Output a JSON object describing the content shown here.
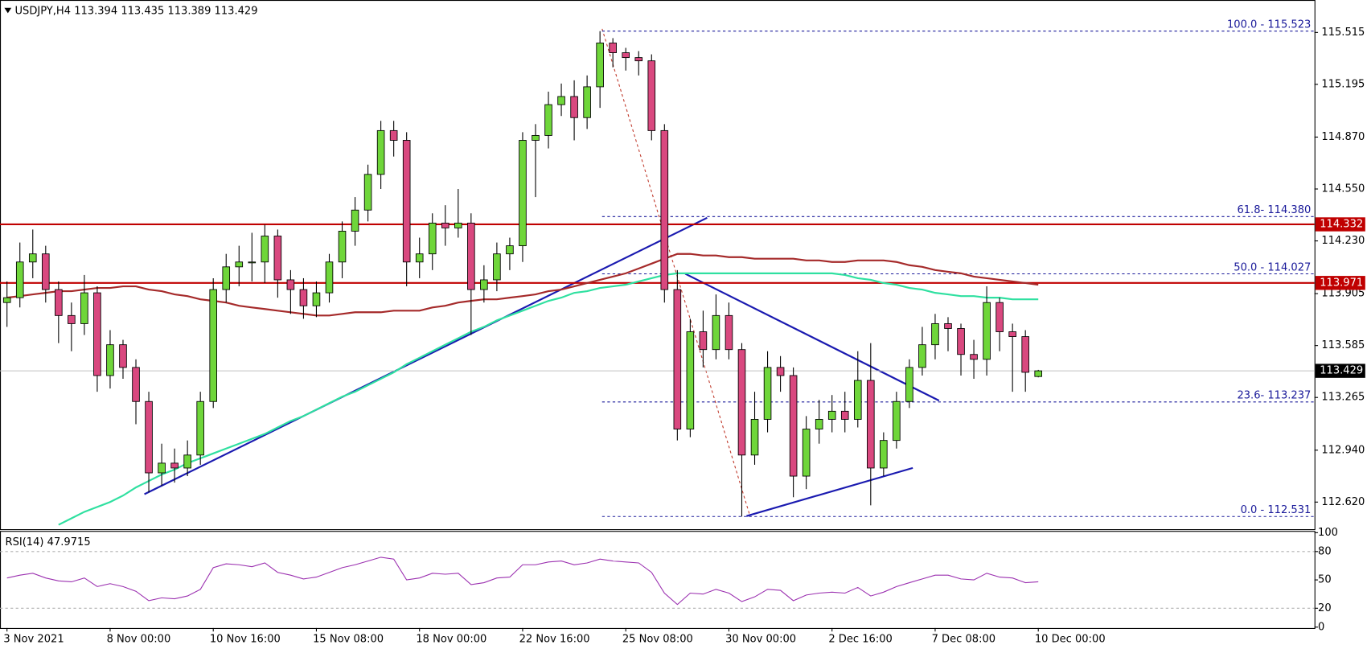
{
  "chart_data": {
    "type": "candlestick",
    "title": "USDJPY,H4  113.394 113.435 113.389 113.429",
    "categories": [
      "3 Nov 2021",
      null,
      null,
      null,
      null,
      null,
      null,
      null,
      "8 Nov 00:00",
      null,
      null,
      null,
      null,
      null,
      null,
      null,
      "10 Nov 16:00",
      null,
      null,
      null,
      null,
      null,
      null,
      null,
      "15 Nov 08:00",
      null,
      null,
      null,
      null,
      null,
      null,
      null,
      "18 Nov 00:00",
      null,
      null,
      null,
      null,
      null,
      null,
      null,
      "22 Nov 16:00",
      null,
      null,
      null,
      null,
      null,
      null,
      null,
      "25 Nov 08:00",
      null,
      null,
      null,
      null,
      null,
      null,
      null,
      "30 Nov 00:00",
      null,
      null,
      null,
      null,
      null,
      null,
      null,
      "2 Dec 16:00",
      null,
      null,
      null,
      null,
      null,
      null,
      null,
      "7 Dec 08:00",
      null,
      null,
      null,
      null,
      null,
      null,
      null,
      "10 Dec 00:00"
    ],
    "open": [
      113.85,
      113.88,
      114.1,
      114.15,
      113.93,
      113.77,
      113.72,
      113.91,
      113.4,
      113.59,
      113.45,
      113.24,
      112.8,
      112.86,
      112.83,
      112.91,
      113.24,
      113.93,
      114.07,
      114.1,
      114.1,
      114.26,
      113.99,
      113.93,
      113.83,
      113.91,
      114.1,
      114.29,
      114.42,
      114.64,
      114.91,
      114.85,
      114.1,
      114.15,
      114.34,
      114.31,
      114.34,
      113.93,
      113.99,
      114.15,
      114.2,
      114.85,
      114.88,
      115.07,
      115.12,
      114.99,
      115.18,
      115.45,
      115.39,
      115.36,
      115.34,
      114.91,
      113.93,
      113.07,
      113.67,
      113.56,
      113.77,
      113.56,
      112.91,
      113.13,
      113.45,
      113.4,
      112.78,
      113.07,
      113.13,
      113.18,
      113.13,
      113.37,
      112.83,
      113.0,
      113.24,
      113.45,
      113.59,
      113.72,
      113.69,
      113.53,
      113.5,
      113.85,
      113.67,
      113.64,
      113.394
    ],
    "high": [
      113.98,
      114.22,
      114.3,
      114.2,
      113.98,
      113.85,
      114.02,
      113.95,
      113.68,
      113.62,
      113.5,
      113.3,
      112.98,
      112.95,
      113.0,
      113.3,
      114.0,
      114.15,
      114.2,
      114.28,
      114.33,
      114.3,
      114.05,
      114.0,
      113.98,
      114.15,
      114.35,
      114.5,
      114.7,
      114.97,
      114.97,
      114.9,
      114.25,
      114.4,
      114.45,
      114.55,
      114.4,
      114.08,
      114.22,
      114.25,
      114.9,
      114.95,
      115.15,
      115.2,
      115.22,
      115.25,
      115.523,
      115.48,
      115.42,
      115.4,
      115.38,
      114.95,
      114.05,
      113.75,
      113.8,
      113.9,
      113.85,
      113.6,
      113.3,
      113.55,
      113.52,
      113.45,
      113.15,
      113.25,
      113.28,
      113.3,
      113.55,
      113.6,
      113.05,
      113.3,
      113.5,
      113.7,
      113.78,
      113.76,
      113.72,
      113.62,
      113.95,
      113.88,
      113.72,
      113.68,
      113.435
    ],
    "low": [
      113.7,
      113.82,
      114.0,
      113.85,
      113.6,
      113.55,
      113.65,
      113.3,
      113.32,
      113.38,
      113.1,
      112.68,
      112.72,
      112.74,
      112.78,
      112.85,
      113.2,
      113.85,
      113.95,
      113.98,
      113.97,
      113.88,
      113.78,
      113.75,
      113.76,
      113.85,
      114.0,
      114.2,
      114.35,
      114.55,
      114.75,
      113.95,
      114.0,
      114.05,
      114.2,
      114.25,
      113.65,
      113.85,
      113.92,
      114.05,
      114.1,
      114.5,
      114.8,
      115.0,
      114.85,
      114.92,
      115.05,
      115.3,
      115.28,
      115.25,
      114.85,
      113.85,
      113.0,
      113.02,
      113.45,
      113.5,
      113.5,
      112.531,
      112.85,
      113.05,
      113.3,
      112.65,
      112.7,
      112.98,
      113.05,
      113.05,
      113.08,
      112.6,
      112.78,
      112.95,
      113.2,
      113.4,
      113.5,
      113.55,
      113.4,
      113.38,
      113.4,
      113.55,
      113.3,
      113.3,
      113.389
    ],
    "close": [
      113.88,
      114.1,
      114.15,
      113.93,
      113.77,
      113.72,
      113.91,
      113.4,
      113.59,
      113.45,
      113.24,
      112.8,
      112.86,
      112.83,
      112.91,
      113.24,
      113.93,
      114.07,
      114.1,
      114.1,
      114.26,
      113.99,
      113.93,
      113.83,
      113.91,
      114.1,
      114.29,
      114.42,
      114.64,
      114.91,
      114.85,
      114.1,
      114.15,
      114.34,
      114.31,
      114.34,
      113.93,
      113.99,
      114.15,
      114.2,
      114.85,
      114.88,
      115.07,
      115.12,
      114.99,
      115.18,
      115.45,
      115.39,
      115.36,
      115.34,
      114.91,
      113.93,
      113.07,
      113.67,
      113.56,
      113.77,
      113.56,
      112.91,
      113.13,
      113.45,
      113.4,
      112.78,
      113.07,
      113.13,
      113.18,
      113.13,
      113.37,
      112.83,
      113.0,
      113.24,
      113.45,
      113.59,
      113.72,
      113.69,
      113.53,
      113.5,
      113.85,
      113.67,
      113.64,
      113.42,
      113.429
    ],
    "up_color": "#6fd63a",
    "down_color": "#d9487f",
    "lines": [
      {
        "color": "#2fe0a0",
        "values": [
          null,
          null,
          null,
          null,
          112.48,
          112.52,
          112.56,
          112.59,
          112.62,
          112.66,
          112.71,
          112.75,
          112.79,
          112.82,
          112.86,
          112.89,
          112.92,
          112.95,
          112.98,
          113.01,
          113.04,
          113.08,
          113.12,
          113.15,
          113.19,
          113.23,
          113.27,
          113.3,
          113.34,
          113.38,
          113.42,
          113.47,
          113.51,
          113.55,
          113.59,
          113.63,
          113.67,
          113.7,
          113.74,
          113.77,
          113.8,
          113.83,
          113.86,
          113.88,
          113.91,
          113.92,
          113.94,
          113.95,
          113.96,
          113.98,
          114.0,
          114.02,
          114.03,
          114.03,
          114.03,
          114.03,
          114.03,
          114.03,
          114.03,
          114.03,
          114.03,
          114.03,
          114.03,
          114.03,
          114.03,
          114.02,
          114.0,
          113.99,
          113.97,
          113.96,
          113.94,
          113.93,
          113.91,
          113.9,
          113.89,
          113.89,
          113.88,
          113.88,
          113.87,
          113.87,
          113.87
        ]
      },
      {
        "color": "#a52a2a",
        "values": [
          113.88,
          113.89,
          113.9,
          113.91,
          113.92,
          113.92,
          113.93,
          113.94,
          113.94,
          113.95,
          113.95,
          113.93,
          113.92,
          113.9,
          113.89,
          113.87,
          113.86,
          113.85,
          113.83,
          113.82,
          113.81,
          113.8,
          113.79,
          113.78,
          113.77,
          113.77,
          113.78,
          113.79,
          113.79,
          113.79,
          113.8,
          113.8,
          113.8,
          113.82,
          113.83,
          113.85,
          113.86,
          113.87,
          113.87,
          113.88,
          113.89,
          113.9,
          113.92,
          113.93,
          113.95,
          113.97,
          113.99,
          114.01,
          114.03,
          114.06,
          114.09,
          114.12,
          114.15,
          114.15,
          114.14,
          114.14,
          114.13,
          114.13,
          114.12,
          114.12,
          114.12,
          114.12,
          114.11,
          114.11,
          114.1,
          114.1,
          114.11,
          114.11,
          114.11,
          114.1,
          114.08,
          114.07,
          114.05,
          114.04,
          114.03,
          114.01,
          114.0,
          113.99,
          113.98,
          113.97,
          113.96
        ]
      }
    ],
    "ylim": [
      112.453,
      115.715
    ],
    "yticks": [
      {
        "value": 112.62,
        "label": "112.620"
      },
      {
        "value": 112.94,
        "label": "112.940"
      },
      113.265,
      113.585,
      113.905,
      {
        "value": 114.23,
        "label": "114.230"
      },
      {
        "value": 114.55,
        "label": "114.550"
      },
      {
        "value": 114.87,
        "label": "114.870"
      },
      115.195,
      115.515
    ],
    "hlines": [
      {
        "value": 114.332,
        "color": "#c00000"
      },
      {
        "value": 113.971,
        "color": "#c00000"
      }
    ],
    "current_price": 113.429,
    "fib": [
      {
        "value": 115.523,
        "label": "100.0 - 115.523"
      },
      {
        "value": 114.38,
        "label": "61.8- 114.380"
      },
      {
        "value": 114.027,
        "label": "50.0 - 114.027"
      },
      {
        "value": 113.237,
        "label": "23.6- 113.237"
      },
      {
        "value": 112.531,
        "label": "0.0 - 112.531"
      }
    ],
    "fib_color": "#1a1a9a",
    "rsi": {
      "title": "RSI(14) 47.9715",
      "color": "#9b30b0",
      "values": [
        52,
        55,
        57,
        52,
        49,
        48,
        52,
        43,
        46,
        43,
        38,
        28,
        31,
        30,
        33,
        40,
        63,
        67,
        66,
        64,
        68,
        58,
        55,
        51,
        53,
        58,
        63,
        66,
        70,
        74,
        72,
        50,
        52,
        57,
        56,
        57,
        45,
        47,
        52,
        53,
        66,
        66,
        69,
        70,
        66,
        68,
        72,
        70,
        69,
        68,
        58,
        36,
        24,
        36,
        35,
        40,
        36,
        27,
        32,
        40,
        39,
        28,
        34,
        36,
        37,
        36,
        42,
        33,
        37,
        43,
        47,
        51,
        55,
        55,
        51,
        50,
        57,
        53,
        52,
        47,
        47.9715
      ],
      "ylim": [
        0,
        100
      ],
      "yticks": [
        100,
        80,
        50,
        20,
        0
      ],
      "levels": [
        80,
        20
      ]
    }
  }
}
